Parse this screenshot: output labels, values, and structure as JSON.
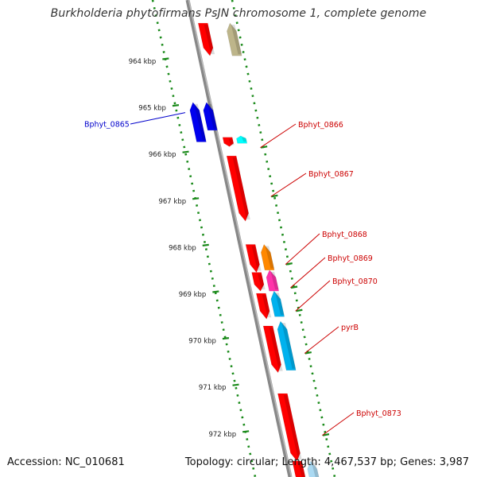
{
  "title": "Burkholderia phytofirmans PsJN chromosome 1, complete genome",
  "footer": {
    "accession": "Accession: NC_010681",
    "summary": "Topology: circular; Length: 4,467,537 bp; Genes: 3,987"
  },
  "colors": {
    "backbone": "#888888",
    "ticks": "#1a8a1a",
    "forward_gene": "#ff0000",
    "left_label": "#0000cc",
    "right_label": "#cc0000"
  },
  "ruler": {
    "unit": "kbp",
    "labels": [
      "964 kbp",
      "965 kbp",
      "966 kbp",
      "967 kbp",
      "968 kbp",
      "969 kbp",
      "970 kbp",
      "971 kbp",
      "972 kbp"
    ],
    "kbp": [
      964,
      965,
      966,
      967,
      968,
      969,
      970,
      971,
      972
    ]
  },
  "genes": [
    {
      "name": "",
      "strand": "+",
      "start_kbp": 963.2,
      "end_kbp": 963.9,
      "color": "#ff0000",
      "lane": 0
    },
    {
      "name": "",
      "strand": "-",
      "start_kbp": 963.2,
      "end_kbp": 963.9,
      "color": "#bdb58a",
      "lane": 2
    },
    {
      "name": "Bphyt_0865",
      "strand": "-",
      "start_kbp": 964.9,
      "end_kbp": 965.75,
      "color": "#0000ee",
      "lane": -2,
      "label": true
    },
    {
      "name": "",
      "strand": "-",
      "start_kbp": 964.9,
      "end_kbp": 965.5,
      "color": "#0000ee",
      "lane": -1
    },
    {
      "name": "",
      "strand": "+",
      "start_kbp": 965.65,
      "end_kbp": 965.85,
      "color": "#ff0000",
      "lane": 0
    },
    {
      "name": "Bphyt_0866",
      "strand": "-",
      "start_kbp": 965.62,
      "end_kbp": 965.78,
      "color": "#00ffff",
      "lane": 1,
      "label": true
    },
    {
      "name": "Bphyt_0867",
      "strand": "+",
      "start_kbp": 966.05,
      "end_kbp": 967.45,
      "color": "#ff0000",
      "lane": 0,
      "label": true
    },
    {
      "name": "Bphyt_0868",
      "strand": "-",
      "start_kbp": 967.95,
      "end_kbp": 968.5,
      "color": "#ff8800",
      "lane": 1,
      "label": true
    },
    {
      "name": "",
      "strand": "+",
      "start_kbp": 967.95,
      "end_kbp": 968.55,
      "color": "#ff0000",
      "lane": 0
    },
    {
      "name": "Bphyt_0869",
      "strand": "-",
      "start_kbp": 968.5,
      "end_kbp": 968.95,
      "color": "#ff33aa",
      "lane": 1,
      "label": true
    },
    {
      "name": "",
      "strand": "+",
      "start_kbp": 968.55,
      "end_kbp": 968.95,
      "color": "#ff0000",
      "lane": 0
    },
    {
      "name": "Bphyt_0870",
      "strand": "-",
      "start_kbp": 968.95,
      "end_kbp": 969.5,
      "color": "#00b2ee",
      "lane": 1,
      "label": true
    },
    {
      "name": "",
      "strand": "+",
      "start_kbp": 969.0,
      "end_kbp": 969.55,
      "color": "#ff0000",
      "lane": 0
    },
    {
      "name": "pyrB",
      "strand": "-",
      "start_kbp": 969.6,
      "end_kbp": 970.65,
      "color": "#00b2ee",
      "lane": 1,
      "label": true
    },
    {
      "name": "",
      "strand": "+",
      "start_kbp": 969.7,
      "end_kbp": 970.7,
      "color": "#ff0000",
      "lane": 0
    },
    {
      "name": "Bphyt_0873",
      "strand": "+",
      "start_kbp": 971.15,
      "end_kbp": 972.6,
      "color": "#ff0000",
      "lane": 0,
      "label": true
    },
    {
      "name": "",
      "strand": "+",
      "start_kbp": 972.6,
      "end_kbp": 973.1,
      "color": "#ff0000",
      "lane": 0
    },
    {
      "name": "",
      "strand": "-",
      "start_kbp": 972.6,
      "end_kbp": 973.1,
      "color": "#aad9f2",
      "lane": 1
    }
  ]
}
